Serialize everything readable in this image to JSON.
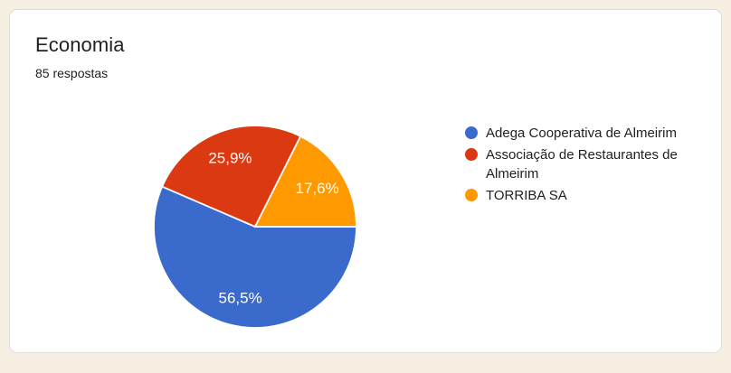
{
  "card": {
    "title": "Economia",
    "responses_text": "85 respostas"
  },
  "chart_data": {
    "type": "pie",
    "title": "Economia",
    "subtitle": "85 respostas",
    "total_responses": 85,
    "start_angle_deg": 0,
    "direction": "clockwise",
    "legend_position": "right",
    "slice_label_color": "#FFFFFF",
    "slice_separator_color": "#FFFFFF",
    "series": [
      {
        "label": "Adega Cooperativa de Almeirim",
        "percent": 56.5,
        "display": "56,5%",
        "color": "#3B6ACD"
      },
      {
        "label": "Associação de Restaurantes de Almeirim",
        "percent": 25.9,
        "display": "25,9%",
        "color": "#DB3912"
      },
      {
        "label": "TORRIBA SA",
        "percent": 17.6,
        "display": "17,6%",
        "color": "#FF9900"
      }
    ]
  },
  "colors": {
    "page_bg": "#F7F0E2",
    "card_bg": "#FFFFFF",
    "card_border": "#DADCE0",
    "text": "#202124"
  }
}
